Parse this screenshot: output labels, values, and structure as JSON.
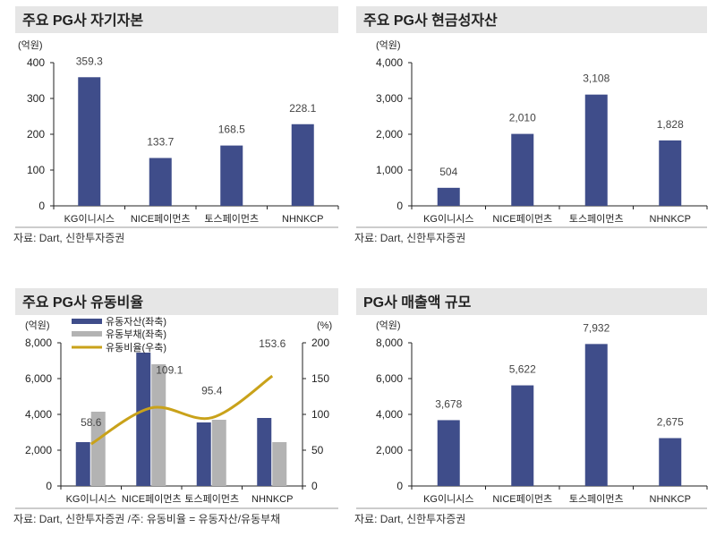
{
  "colors": {
    "bar": "#3f4d8a",
    "bar2": "#b3b3b3",
    "line": "#c9a21a",
    "title_bg": "#e6e6e6"
  },
  "chart_data": [
    {
      "type": "bar",
      "title": "주요 PG사 자기자본",
      "ylabel": "(억원)",
      "categories": [
        "KG이니시스",
        "NICE페이먼츠",
        "토스페이먼츠",
        "NHNKCP"
      ],
      "values": [
        359.3,
        133.7,
        168.5,
        228.1
      ],
      "data_labels": [
        "359.3",
        "133.7",
        "168.5",
        "228.1"
      ],
      "ylim": [
        0,
        400
      ],
      "yticks": [
        "0",
        "100",
        "200",
        "300",
        "400"
      ],
      "source": "자료: Dart, 신한투자증권"
    },
    {
      "type": "bar",
      "title": "주요 PG사 현금성자산",
      "ylabel": "(억원)",
      "categories": [
        "KG이니시스",
        "NICE페이먼츠",
        "토스페이먼츠",
        "NHNKCP"
      ],
      "values": [
        504,
        2010,
        3108,
        1828
      ],
      "data_labels": [
        "504",
        "2,010",
        "3,108",
        "1,828"
      ],
      "ylim": [
        0,
        4000
      ],
      "yticks": [
        "0",
        "1,000",
        "2,000",
        "3,000",
        "4,000"
      ],
      "source": "자료: Dart, 신한투자증권"
    },
    {
      "type": "bar+line",
      "title": "주요 PG사 유동비율",
      "ylabel": "(억원)",
      "y2label": "(%)",
      "categories": [
        "KG이니시스",
        "NICE페이먼츠",
        "토스페이먼츠",
        "NHNKCP"
      ],
      "series": [
        {
          "name": "유동자산(좌축)",
          "type": "bar",
          "axis": "left",
          "values": [
            2450,
            7450,
            3550,
            3800
          ]
        },
        {
          "name": "유동부채(좌축)",
          "type": "bar",
          "axis": "left",
          "values": [
            4150,
            6800,
            3700,
            2450
          ]
        },
        {
          "name": "유동비율(우축)",
          "type": "line",
          "axis": "right",
          "values": [
            58.6,
            109.1,
            95.4,
            153.6
          ],
          "data_labels": [
            "58.6",
            "109.1",
            "95.4",
            "153.6"
          ]
        }
      ],
      "ylim": [
        0,
        8000
      ],
      "y2lim": [
        0,
        200
      ],
      "yticks": [
        "0",
        "2,000",
        "4,000",
        "6,000",
        "8,000"
      ],
      "y2ticks": [
        "0",
        "50",
        "100",
        "150",
        "200"
      ],
      "legend": "top-left",
      "source": "자료: Dart, 신한투자증권 /주: 유동비율 = 유동자산/유동부채"
    },
    {
      "type": "bar",
      "title": "PG사 매출액 규모",
      "ylabel": "(억원)",
      "categories": [
        "KG이니시스",
        "NICE페이먼츠",
        "토스페이먼츠",
        "NHNKCP"
      ],
      "values": [
        3678,
        5622,
        7932,
        2675
      ],
      "data_labels": [
        "3,678",
        "5,622",
        "7,932",
        "2,675"
      ],
      "ylim": [
        0,
        8000
      ],
      "yticks": [
        "0",
        "2,000",
        "4,000",
        "6,000",
        "8,000"
      ],
      "source": "자료: Dart, 신한투자증권"
    }
  ]
}
